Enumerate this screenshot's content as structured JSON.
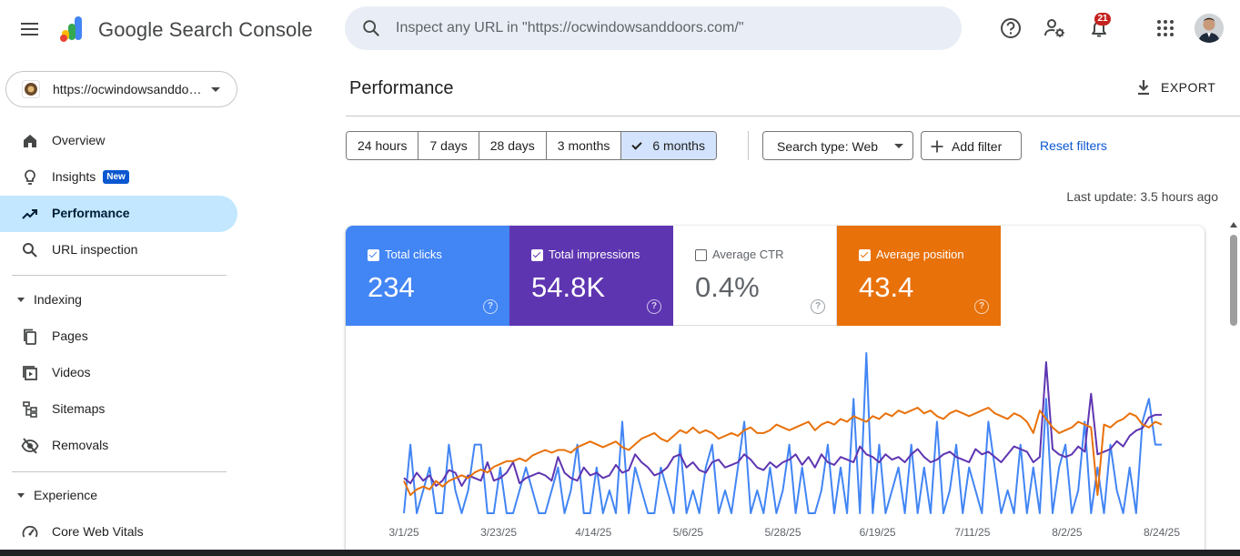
{
  "header": {
    "brand_google": "Google",
    "brand_product": "Search Console",
    "search_placeholder": "Inspect any URL in \"https://ocwindowsanddoors.com/\"",
    "notification_count": "21",
    "icons": [
      "menu-icon",
      "search-icon",
      "help-icon",
      "admin-settings-icon",
      "notifications-icon",
      "apps-grid-icon",
      "avatar"
    ]
  },
  "sidebar": {
    "property": "https://ocwindowsanddoors.com/",
    "items": [
      {
        "label": "Overview",
        "icon": "home-icon"
      },
      {
        "label": "Insights",
        "icon": "lightbulb-icon",
        "badge": "New"
      },
      {
        "label": "Performance",
        "icon": "trending-up-icon",
        "active": true
      },
      {
        "label": "URL inspection",
        "icon": "search-icon"
      }
    ],
    "sections": [
      {
        "label": "Indexing",
        "items": [
          {
            "label": "Pages",
            "icon": "pages-icon"
          },
          {
            "label": "Videos",
            "icon": "video-icon"
          },
          {
            "label": "Sitemaps",
            "icon": "sitemap-icon"
          },
          {
            "label": "Removals",
            "icon": "visibility-off-icon"
          }
        ]
      },
      {
        "label": "Experience",
        "items": [
          {
            "label": "Core Web Vitals",
            "icon": "speed-icon"
          }
        ]
      }
    ]
  },
  "main": {
    "title": "Performance",
    "export_label": "EXPORT",
    "ranges": [
      "24 hours",
      "7 days",
      "28 days",
      "3 months",
      "6 months"
    ],
    "selected_range": "6 months",
    "search_type": "Search type: Web",
    "add_filter": "Add filter",
    "reset_filters": "Reset filters",
    "last_update": "Last update: 3.5 hours ago",
    "metrics": [
      {
        "label": "Total clicks",
        "value": "234",
        "checked": true,
        "color": "#4285f4"
      },
      {
        "label": "Total impressions",
        "value": "54.8K",
        "checked": true,
        "color": "#5e35b1"
      },
      {
        "label": "Average CTR",
        "value": "0.4%",
        "checked": false,
        "color": "#00897b"
      },
      {
        "label": "Average position",
        "value": "43.4",
        "checked": true,
        "color": "#e8710a"
      }
    ]
  },
  "chart_data": {
    "type": "line",
    "x_tick_labels": [
      "3/1/25",
      "3/23/25",
      "4/14/25",
      "5/6/25",
      "5/28/25",
      "6/19/25",
      "7/11/25",
      "8/2/25",
      "8/24/25"
    ],
    "series": [
      {
        "name": "Total clicks",
        "color": "#4285f4",
        "values": [
          0,
          3,
          0,
          1,
          2,
          0,
          0,
          3,
          1,
          0,
          1,
          3,
          3,
          0,
          0,
          2,
          0,
          0,
          1,
          2,
          1,
          0,
          0,
          1,
          2,
          0,
          1,
          3,
          0,
          0,
          2,
          0,
          1,
          0,
          4,
          0,
          2,
          1,
          0,
          0,
          2,
          1,
          0,
          3,
          0,
          1,
          0,
          2,
          3,
          0,
          1,
          0,
          2,
          4,
          0,
          1,
          0,
          2,
          0,
          1,
          3,
          0,
          2,
          0,
          0,
          1,
          3,
          0,
          2,
          0,
          5,
          0,
          7,
          0,
          3,
          0,
          1,
          2,
          0,
          3,
          0,
          2,
          0,
          4,
          0,
          1,
          3,
          0,
          2,
          1,
          0,
          4,
          2,
          0,
          1,
          0,
          3,
          0,
          2,
          0,
          5,
          0,
          2,
          3,
          0,
          1,
          4,
          0,
          2,
          0,
          3,
          1,
          0,
          2,
          0,
          4,
          5,
          3,
          3
        ]
      },
      {
        "name": "Total impressions",
        "color": "#5e35b1",
        "values": [
          240,
          220,
          260,
          230,
          250,
          210,
          230,
          270,
          260,
          210,
          250,
          240,
          230,
          300,
          230,
          240,
          260,
          300,
          220,
          240,
          250,
          260,
          250,
          230,
          320,
          260,
          240,
          230,
          280,
          250,
          260,
          240,
          250,
          290,
          260,
          270,
          330,
          300,
          280,
          250,
          260,
          280,
          320,
          330,
          280,
          300,
          270,
          260,
          300,
          310,
          280,
          290,
          300,
          330,
          310,
          280,
          270,
          300,
          280,
          300,
          310,
          330,
          290,
          320,
          280,
          330,
          300,
          290,
          320,
          310,
          300,
          360,
          330,
          320,
          300,
          330,
          310,
          320,
          300,
          330,
          350,
          320,
          300,
          310,
          330,
          340,
          320,
          310,
          300,
          350,
          330,
          340,
          320,
          300,
          330,
          360,
          350,
          340,
          300,
          320,
          680,
          350,
          330,
          320,
          330,
          360,
          340,
          560,
          330,
          340,
          350,
          380,
          360,
          400,
          420,
          430,
          470,
          480,
          480
        ]
      },
      {
        "name": "Average position",
        "color": "#e8710a",
        "values": [
          55,
          60,
          58,
          57,
          58,
          55,
          57,
          55,
          54,
          53,
          54,
          52,
          51,
          52,
          50,
          49,
          48,
          48,
          47,
          48,
          46,
          45,
          44,
          45,
          44,
          44,
          45,
          43,
          42,
          41,
          42,
          43,
          42,
          41,
          43,
          44,
          42,
          40,
          39,
          38,
          40,
          41,
          39,
          37,
          38,
          36,
          38,
          37,
          38,
          40,
          39,
          38,
          39,
          37,
          36,
          38,
          38,
          37,
          35,
          36,
          37,
          36,
          35,
          34,
          37,
          35,
          34,
          35,
          33,
          34,
          32,
          33,
          34,
          32,
          33,
          31,
          32,
          30,
          31,
          30,
          29,
          31,
          30,
          32,
          33,
          31,
          30,
          31,
          32,
          31,
          30,
          29,
          31,
          32,
          33,
          31,
          32,
          34,
          38,
          30,
          33,
          36,
          38,
          37,
          36,
          34,
          35,
          36,
          60,
          35,
          36,
          34,
          33,
          31,
          32,
          35,
          36,
          34,
          35
        ]
      }
    ],
    "grid": false,
    "legend": "none"
  }
}
